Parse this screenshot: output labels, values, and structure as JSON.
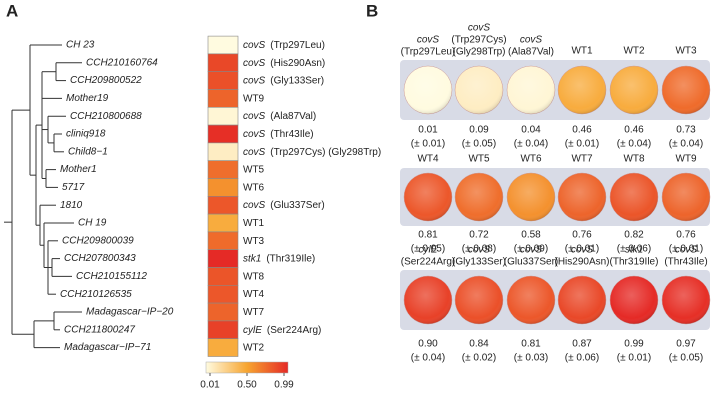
{
  "panel_a": {
    "label": "A",
    "rows": [
      {
        "strain": "CH 23",
        "gene": "covS",
        "mutation": "(Trp297Leu)",
        "value": 0.01
      },
      {
        "strain": "CCH210160764",
        "gene": "covS",
        "mutation": "(His290Asn)",
        "value": 0.87
      },
      {
        "strain": "CCH209800522",
        "gene": "covS",
        "mutation": "(Gly133Ser)",
        "value": 0.84
      },
      {
        "strain": "Mother19",
        "name": "WT9",
        "value": 0.76
      },
      {
        "strain": "CCH210800688",
        "gene": "covS",
        "mutation": "(Ala87Val)",
        "value": 0.04
      },
      {
        "strain": "cliniq918",
        "gene": "covS",
        "mutation": "(Thr43Ile)",
        "value": 0.97
      },
      {
        "strain": "Child8−1",
        "gene": "covS",
        "mutation": "(Trp297Cys)  (Gly298Trp)",
        "value": 0.09
      },
      {
        "strain": "Mother1",
        "name": "WT5",
        "value": 0.72
      },
      {
        "strain": "5717",
        "name": "WT6",
        "value": 0.58
      },
      {
        "strain": "1810",
        "gene": "covS",
        "mutation": "(Glu337Ser)",
        "value": 0.81
      },
      {
        "strain": "CH 19",
        "name": "WT1",
        "value": 0.46
      },
      {
        "strain": "CCH209800039",
        "name": "WT3",
        "value": 0.73
      },
      {
        "strain": "CCH207800343",
        "gene": "stk1",
        "mutation": "(Thr319Ile)",
        "value": 0.99
      },
      {
        "strain": "CCH210155112",
        "name": "WT8",
        "value": 0.82
      },
      {
        "strain": "CCH210126535",
        "name": "WT4",
        "value": 0.81
      },
      {
        "strain": "Madagascar−IP−20",
        "name": "WT7",
        "value": 0.76
      },
      {
        "strain": "CCH211800247",
        "gene": "cylE",
        "mutation": "(Ser224Arg)",
        "value": 0.9
      },
      {
        "strain": "Madagascar−IP−71",
        "name": "WT2",
        "value": 0.46
      }
    ],
    "colorbar": {
      "lim": [
        0.01,
        0.99
      ],
      "ticks": [
        0.01,
        {
          "value": 0.5,
          "label": "0.50"
        },
        0.99
      ]
    }
  },
  "panel_b": {
    "label": "B",
    "rows": [
      [
        {
          "gene": "covS",
          "mutation": [
            "(Trp297Leu)"
          ],
          "value": 0.01,
          "error": "(± 0.01)"
        },
        {
          "gene": "covS",
          "mutation": [
            "(Trp297Cys)",
            "(Gly298Trp)"
          ],
          "value": 0.09,
          "error": "(± 0.05)"
        },
        {
          "gene": "covS",
          "mutation": [
            "(Ala87Val)"
          ],
          "value": 0.04,
          "error": "(± 0.04)"
        },
        {
          "name": "WT1",
          "value": 0.46,
          "error": "(± 0.01)"
        },
        {
          "name": "WT2",
          "value": 0.46,
          "error": "(± 0.04)"
        },
        {
          "name": "WT3",
          "value": 0.73,
          "error": "(± 0.04)"
        }
      ],
      [
        {
          "name": "WT4",
          "value": 0.81,
          "error": "(± 0.05)"
        },
        {
          "name": "WT5",
          "value": 0.72,
          "error": "(± 0.08)"
        },
        {
          "name": "WT6",
          "value": 0.58,
          "error": "(± 0.09)"
        },
        {
          "name": "WT7",
          "value": 0.76,
          "error": "(± 0.01)"
        },
        {
          "name": "WT8",
          "value": 0.82,
          "error": "(± 0.06)"
        },
        {
          "name": "WT9",
          "value": 0.76,
          "error": "(± 0.01)"
        }
      ],
      [
        {
          "gene": "cylE",
          "mutation": [
            "(Ser224Arg)"
          ],
          "value": 0.9,
          "value_label": "0.90",
          "error": "(± 0.04)"
        },
        {
          "gene": "covS",
          "mutation": [
            "(Gly133Ser)"
          ],
          "value": 0.84,
          "error": "(± 0.02)"
        },
        {
          "gene": "covS",
          "mutation": [
            "(Glu337Ser)"
          ],
          "value": 0.81,
          "error": "(± 0.03)"
        },
        {
          "gene": "covS",
          "mutation": [
            "(His290Asn)"
          ],
          "value": 0.87,
          "error": "(± 0.06)"
        },
        {
          "gene": "stk1",
          "mutation": [
            "(Thr319Ile)"
          ],
          "value": 0.99,
          "error": "(± 0.01)"
        },
        {
          "gene": "covS",
          "mutation": [
            "(Thr43Ile)"
          ],
          "value": 0.97,
          "error": "(± 0.05)"
        }
      ]
    ]
  }
}
